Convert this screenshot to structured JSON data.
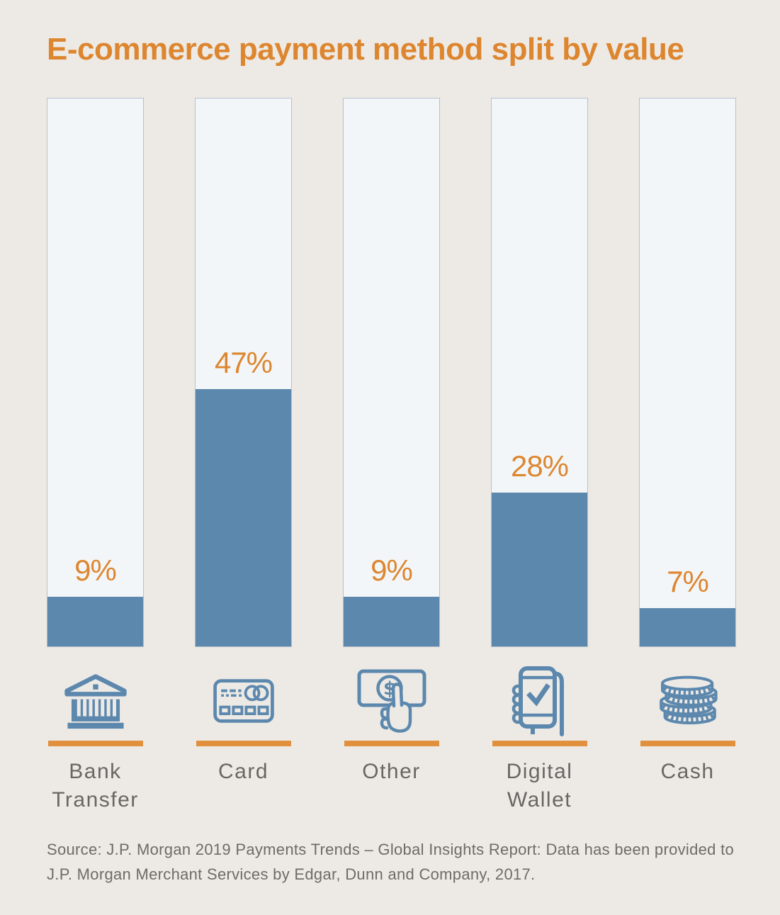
{
  "title": "E-commerce payment method split by value",
  "source": "Source: J.P. Morgan 2019 Payments Trends – Global Insights Report: Data has been provided to J.P. Morgan Merchant Services by Edgar, Dunn and Company, 2017.",
  "colors": {
    "background": "#edeae5",
    "track_fill": "#f3f6f9",
    "track_border": "#b6c0ca",
    "bar_blue": "#5d88ad",
    "accent_orange": "#dd862f",
    "underline_orange": "#e1913e",
    "label_gray": "#696764"
  },
  "icons": [
    "bank-icon",
    "credit-card-icon",
    "banknote-hand-icon",
    "mobile-payment-icon",
    "coins-icon"
  ],
  "chart_data": {
    "type": "bar",
    "title": "E-commerce payment method split by value",
    "categories": [
      "Bank Transfer",
      "Card",
      "Other",
      "Digital Wallet",
      "Cash"
    ],
    "values": [
      9,
      47,
      9,
      28,
      7
    ],
    "value_labels": [
      "9%",
      "47%",
      "9%",
      "28%",
      "7%"
    ],
    "unit": "percent of value",
    "ylim": [
      0,
      100
    ],
    "grid": false,
    "legend": false,
    "orientation": "vertical",
    "bar_style": "filled portion of full-height 100% track"
  }
}
